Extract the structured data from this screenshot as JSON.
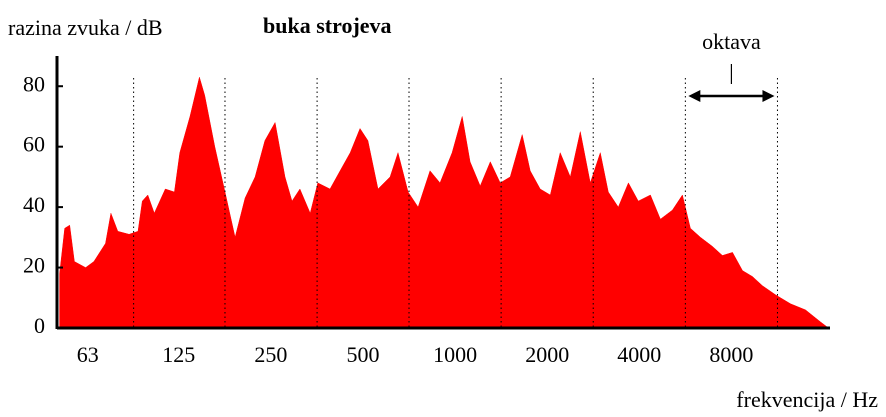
{
  "chart_data": {
    "type": "area",
    "title": "buka strojeva",
    "y_label": "razina zvuka / dB",
    "x_label": "frekvencija / Hz",
    "annotation": "oktava",
    "color": "#ff0000",
    "x_scale": "log",
    "xlim": [
      50,
      16800
    ],
    "ylim": [
      0,
      90
    ],
    "yticks": [
      0,
      20,
      40,
      60,
      80
    ],
    "xticks": [
      63,
      125,
      250,
      500,
      1000,
      2000,
      4000,
      8000
    ],
    "octave_edges": [
      89,
      177,
      354,
      707,
      1414,
      2828,
      5657,
      11314
    ],
    "x": [
      51,
      53,
      55,
      57,
      62,
      66,
      72,
      75,
      79,
      86,
      92,
      95,
      99,
      104,
      113,
      121,
      126,
      136,
      146,
      152,
      164,
      177,
      191,
      206,
      222,
      239,
      258,
      278,
      293,
      311,
      336,
      356,
      390,
      421,
      454,
      489,
      519,
      560,
      613,
      651,
      702,
      757,
      828,
      893,
      978,
      1055,
      1120,
      1208,
      1303,
      1404,
      1514,
      1657,
      1760,
      1898,
      2047,
      2206,
      2380,
      2566,
      2767,
      2982,
      3168,
      3416,
      3684,
      3971,
      4349,
      4687,
      5132,
      5534,
      5875,
      6335,
      6936,
      7478,
      8064,
      8694,
      9374,
      10105,
      11145,
      12480,
      13973,
      15656,
      16613
    ],
    "values": [
      18,
      33,
      34,
      22,
      20,
      22,
      28,
      38,
      32,
      31,
      32,
      42,
      44,
      38,
      46,
      45,
      58,
      70,
      83,
      77,
      60,
      45,
      30,
      43,
      50,
      62,
      68,
      50,
      42,
      46,
      38,
      48,
      46,
      52,
      58,
      66,
      62,
      46,
      50,
      58,
      45,
      40,
      52,
      48,
      58,
      70,
      55,
      47,
      55,
      48,
      50,
      64,
      52,
      46,
      44,
      58,
      50,
      65,
      48,
      58,
      45,
      40,
      48,
      42,
      44,
      36,
      39,
      44,
      33,
      30,
      27,
      24,
      25,
      19,
      17,
      14,
      11,
      8,
      6,
      2,
      0
    ]
  }
}
